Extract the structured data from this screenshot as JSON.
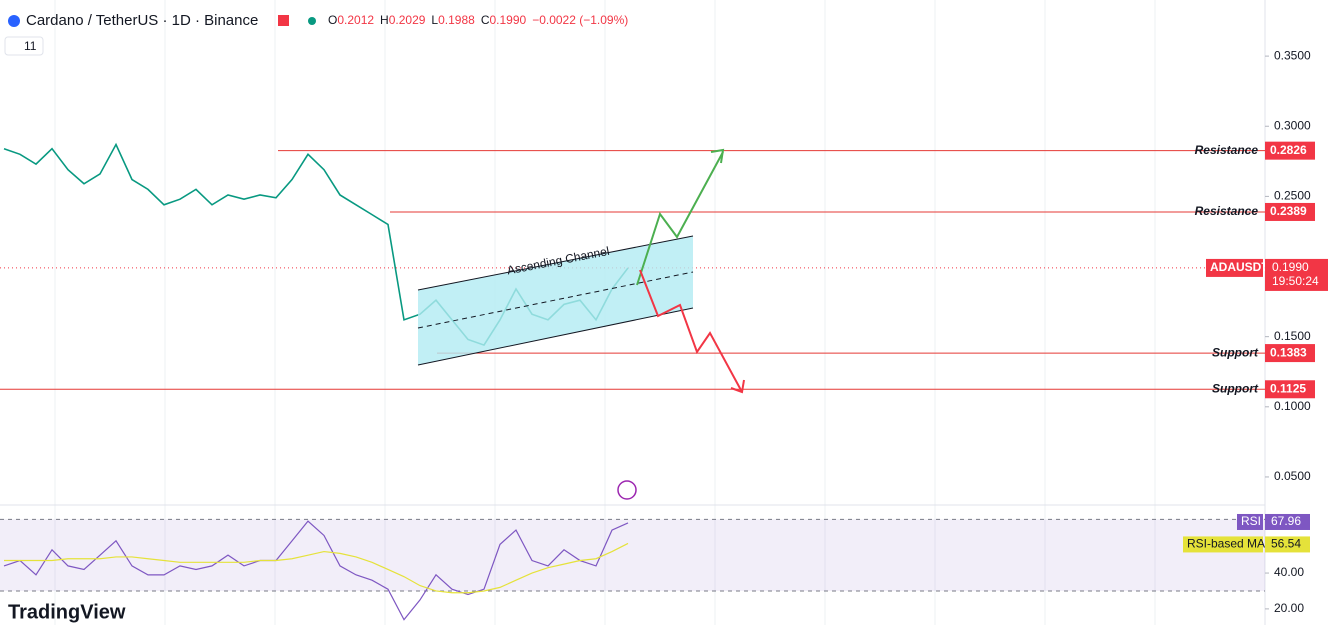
{
  "header": {
    "title": "Cardano / TetherUS · 1D · Binance",
    "o_label": "O",
    "open": "0.2012",
    "h_label": "H",
    "high": "0.2029",
    "l_label": "L",
    "low": "0.1988",
    "c_label": "C",
    "close": "0.1990",
    "change": "−0.0022 (−1.09%)",
    "indicator_count": "11",
    "logo": "TradingView"
  },
  "chart_data": [
    {
      "type": "line",
      "annotation": "Ascending Channel",
      "countdown": "19:50:24",
      "last_value_label": "0.1990",
      "categories": [
        null,
        null,
        null,
        null,
        null,
        null,
        null,
        null,
        null,
        null,
        null,
        null,
        null,
        null,
        null,
        null,
        null,
        null,
        null,
        null,
        null,
        null,
        null,
        null,
        null,
        null,
        null,
        null,
        null,
        null,
        null,
        null,
        null,
        null,
        null,
        null,
        null,
        null,
        null,
        null
      ],
      "series": [
        {
          "name": "ADAUSDT",
          "color": "#089981",
          "values": [
            0.284,
            0.28,
            0.273,
            0.284,
            0.269,
            0.259,
            0.266,
            0.287,
            0.262,
            0.255,
            0.244,
            0.248,
            0.255,
            0.244,
            0.251,
            0.248,
            0.251,
            0.249,
            0.262,
            0.28,
            0.269,
            0.251,
            0.244,
            0.237,
            0.23,
            0.162,
            0.166,
            0.176,
            0.162,
            0.148,
            0.144,
            0.162,
            0.184,
            0.166,
            0.162,
            0.173,
            0.176,
            0.162,
            0.184,
            0.199
          ]
        }
      ],
      "levels": [
        {
          "name": "Resistance",
          "value": 0.2826
        },
        {
          "name": "Resistance",
          "value": 0.2389
        },
        {
          "name": "Support",
          "value": 0.1383
        },
        {
          "name": "Support",
          "value": 0.1125
        }
      ],
      "ylim": [
        0.03,
        0.39
      ],
      "yticks": [
        {
          "value": 0.35,
          "label": "0.3500"
        },
        {
          "value": 0.3,
          "label": "0.3000"
        },
        {
          "value": 0.25,
          "label": "0.2500"
        },
        {
          "value": 0.15,
          "label": "0.1500"
        },
        {
          "value": 0.1,
          "label": "0.1000"
        },
        {
          "value": 0.05,
          "label": "0.0500"
        }
      ]
    },
    {
      "type": "line",
      "categories": [
        null,
        null,
        null,
        null,
        null,
        null,
        null,
        null,
        null,
        null,
        null,
        null,
        null,
        null,
        null,
        null,
        null,
        null,
        null,
        null,
        null,
        null,
        null,
        null,
        null,
        null,
        null,
        null,
        null,
        null,
        null,
        null,
        null,
        null,
        null,
        null,
        null,
        null,
        null,
        null
      ],
      "series": [
        {
          "name": "RSI",
          "color": "#7e57c2",
          "values": [
            44,
            47,
            39,
            53,
            44,
            42,
            50,
            58,
            44,
            39,
            39,
            44,
            42,
            44,
            50,
            44,
            47,
            47,
            58,
            69,
            61,
            44,
            39,
            36,
            31,
            14,
            25,
            39,
            31,
            28,
            31,
            56,
            64,
            47,
            44,
            53,
            47,
            44,
            64,
            67.96
          ]
        },
        {
          "name": "RSI-based MA",
          "color": "#e5e23a",
          "values": [
            47,
            47,
            47,
            47,
            48,
            48,
            48,
            49,
            49,
            48,
            47,
            46,
            46,
            46,
            46,
            46,
            47,
            47,
            48,
            50,
            52,
            51,
            49,
            46,
            42,
            38,
            33,
            30,
            29,
            29,
            30,
            32,
            36,
            40,
            43,
            45,
            47,
            48,
            52,
            56.54
          ]
        }
      ],
      "bands": [
        30,
        70
      ],
      "ylim": [
        11,
        78
      ],
      "yticks": [
        {
          "value": 20,
          "label": "20.00"
        },
        {
          "value": 40,
          "label": "40.00"
        }
      ]
    }
  ]
}
